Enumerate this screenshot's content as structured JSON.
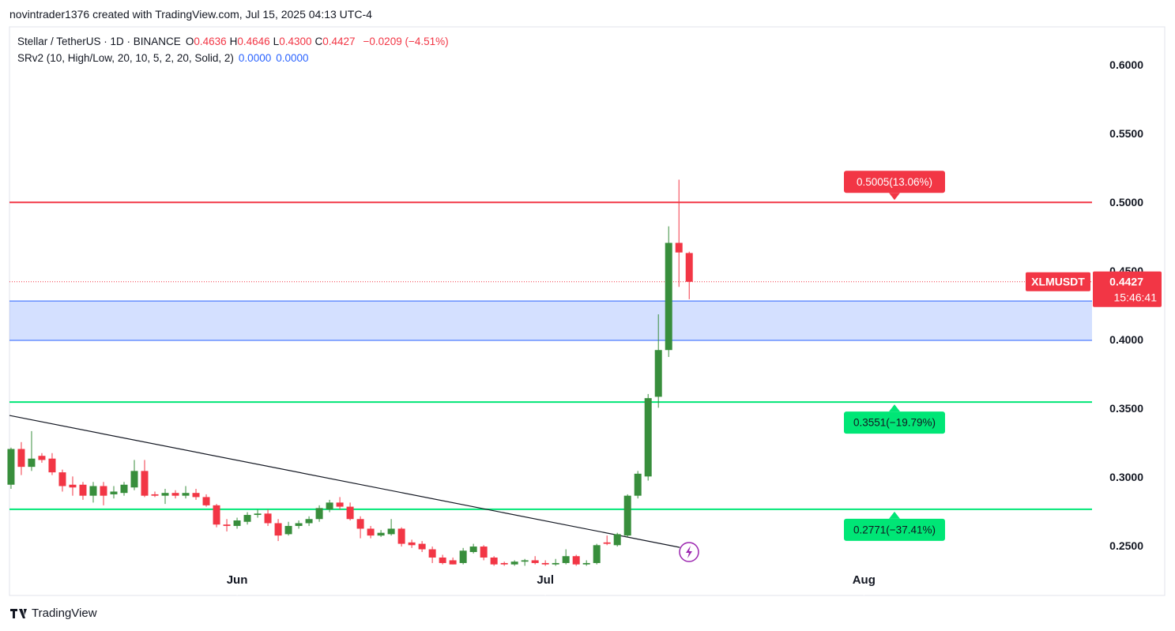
{
  "header": {
    "attribution": "novintrader1376 created with TradingView.com, Jul 15, 2025 04:13 UTC-4",
    "symbol": "Stellar / TetherUS · 1D · BINANCE",
    "ohlc": [
      {
        "key": "O",
        "value": "0.4636"
      },
      {
        "key": "H",
        "value": "0.4646"
      },
      {
        "key": "L",
        "value": "0.4300"
      },
      {
        "key": "C",
        "value": "0.4427"
      }
    ],
    "change": "−0.0209 (−4.51%)",
    "indicator": "SRv2 (10, High/Low, 20, 10, 5, 2, 20, Solid, 2)",
    "indicator_values": [
      "0.0000",
      "0.0000"
    ]
  },
  "chart_data": {
    "type": "candlestick",
    "x": [
      0,
      1,
      2,
      3,
      4,
      5,
      6,
      7,
      8,
      9,
      10,
      11,
      12,
      13,
      14,
      15,
      16,
      17,
      18,
      19,
      20,
      21,
      22,
      23,
      24,
      25,
      26,
      27,
      28,
      29,
      30,
      31,
      32,
      33,
      34,
      35,
      36,
      37,
      38,
      39,
      40,
      41,
      42,
      43,
      44,
      45,
      46,
      47,
      48,
      49,
      50,
      51,
      52,
      53,
      54,
      55,
      56,
      57,
      58,
      59,
      60,
      61,
      62,
      63,
      64,
      65,
      66
    ],
    "open": [
      0.295,
      0.321,
      0.308,
      0.316,
      0.314,
      0.304,
      0.295,
      0.295,
      0.287,
      0.294,
      0.288,
      0.289,
      0.293,
      0.305,
      0.288,
      0.287,
      0.289,
      0.287,
      0.289,
      0.286,
      0.28,
      0.266,
      0.265,
      0.268,
      0.273,
      0.274,
      0.267,
      0.259,
      0.265,
      0.267,
      0.27,
      0.277,
      0.282,
      0.279,
      0.27,
      0.263,
      0.258,
      0.259,
      0.263,
      0.253,
      0.252,
      0.248,
      0.242,
      0.24,
      0.238,
      0.246,
      0.25,
      0.242,
      0.238,
      0.237,
      0.239,
      0.24,
      0.238,
      0.237,
      0.238,
      0.243,
      0.237,
      0.238,
      0.253,
      0.251,
      0.258,
      0.287,
      0.301,
      0.359,
      0.393,
      0.471,
      0.4636
    ],
    "high": [
      0.322,
      0.326,
      0.334,
      0.318,
      0.318,
      0.306,
      0.301,
      0.297,
      0.297,
      0.297,
      0.294,
      0.297,
      0.313,
      0.313,
      0.29,
      0.292,
      0.291,
      0.294,
      0.292,
      0.288,
      0.281,
      0.27,
      0.271,
      0.275,
      0.277,
      0.277,
      0.27,
      0.268,
      0.269,
      0.272,
      0.28,
      0.284,
      0.286,
      0.282,
      0.272,
      0.265,
      0.262,
      0.27,
      0.264,
      0.255,
      0.254,
      0.25,
      0.244,
      0.242,
      0.249,
      0.252,
      0.251,
      0.243,
      0.239,
      0.24,
      0.241,
      0.243,
      0.24,
      0.241,
      0.248,
      0.244,
      0.24,
      0.252,
      0.258,
      0.26,
      0.288,
      0.305,
      0.361,
      0.419,
      0.483,
      0.517,
      0.4646
    ],
    "low": [
      0.292,
      0.302,
      0.305,
      0.311,
      0.302,
      0.29,
      0.287,
      0.284,
      0.282,
      0.28,
      0.285,
      0.287,
      0.291,
      0.286,
      0.286,
      0.281,
      0.285,
      0.285,
      0.284,
      0.279,
      0.264,
      0.261,
      0.263,
      0.266,
      0.271,
      0.265,
      0.254,
      0.258,
      0.263,
      0.265,
      0.268,
      0.275,
      0.277,
      0.269,
      0.256,
      0.256,
      0.257,
      0.258,
      0.25,
      0.249,
      0.246,
      0.238,
      0.237,
      0.237,
      0.237,
      0.245,
      0.24,
      0.236,
      0.236,
      0.236,
      0.236,
      0.237,
      0.236,
      0.236,
      0.237,
      0.236,
      0.236,
      0.237,
      0.251,
      0.25,
      0.257,
      0.285,
      0.298,
      0.351,
      0.388,
      0.439,
      0.43
    ],
    "close": [
      0.321,
      0.308,
      0.314,
      0.313,
      0.304,
      0.294,
      0.293,
      0.287,
      0.294,
      0.287,
      0.29,
      0.295,
      0.305,
      0.287,
      0.287,
      0.289,
      0.287,
      0.289,
      0.286,
      0.28,
      0.266,
      0.265,
      0.269,
      0.273,
      0.274,
      0.267,
      0.258,
      0.265,
      0.267,
      0.27,
      0.278,
      0.282,
      0.279,
      0.27,
      0.263,
      0.258,
      0.26,
      0.263,
      0.252,
      0.251,
      0.248,
      0.242,
      0.238,
      0.237,
      0.247,
      0.25,
      0.242,
      0.237,
      0.237,
      0.239,
      0.24,
      0.238,
      0.237,
      0.238,
      0.243,
      0.237,
      0.238,
      0.251,
      0.252,
      0.259,
      0.287,
      0.303,
      0.358,
      0.393,
      0.471,
      0.464,
      0.4427
    ],
    "up_color": "#388e3c",
    "down_color": "#f23645",
    "xlim": [
      -0.15,
      105.2
    ],
    "xticks": [
      {
        "value": 22,
        "label": "Jun"
      },
      {
        "value": 52,
        "label": "Jul"
      },
      {
        "value": 83,
        "label": "Aug"
      }
    ],
    "ylim": [
      0.2144,
      0.6282
    ],
    "yticks": [
      {
        "value": 0.25,
        "label": "0.2500"
      },
      {
        "value": 0.3,
        "label": "0.3000"
      },
      {
        "value": 0.35,
        "label": "0.3500"
      },
      {
        "value": 0.4,
        "label": "0.4000"
      },
      {
        "value": 0.45,
        "label": "0.4500"
      },
      {
        "value": 0.5,
        "label": "0.5000"
      },
      {
        "value": 0.55,
        "label": "0.5500"
      },
      {
        "value": 0.6,
        "label": "0.6000"
      }
    ],
    "levels": [
      {
        "value": 0.5005,
        "value_label": "0.5005(13.06%)",
        "color": "#f23645",
        "label_position": "above"
      },
      {
        "value": 0.3551,
        "value_label": "0.3551(−19.79%)",
        "color": "#00e676",
        "label_position": "below"
      },
      {
        "value": 0.2771,
        "value_label": "0.2771(−37.41%)",
        "color": "#00e676",
        "label_position": "below"
      }
    ],
    "zone": {
      "values": [
        0.4,
        0.4287
      ],
      "color": "#2962ff"
    },
    "trendline": {
      "x": [
        -0.15,
        65.08
      ],
      "values": [
        0.3454,
        0.2494
      ],
      "color": "#131722"
    },
    "last_price": {
      "value": 0.4427,
      "symbol": "XLMUSDT",
      "countdown": "15:46:41",
      "color": "#f23645"
    }
  },
  "footer": {
    "brand": "TradingView"
  }
}
